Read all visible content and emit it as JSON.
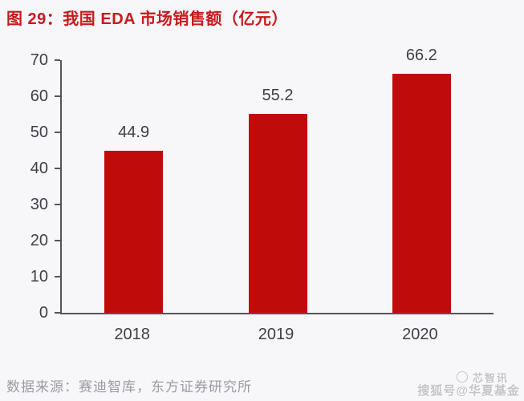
{
  "title": "图 29：我国 EDA 市场销售额（亿元）",
  "source": "数据来源：赛迪智库，东方证券研究所",
  "watermark": {
    "brand": "芯智讯",
    "account": "搜狐号@华夏基金",
    "logo_icon": "xinzhixun-swirl-circle-icon"
  },
  "colors": {
    "bar": "#C00B0B",
    "title_text": "#C9191C",
    "axis_line": "#54545C",
    "tick_text": "#3F3F48",
    "source_text": "#9B9BA6",
    "background": "#F7F7F9"
  },
  "chart_data": {
    "type": "bar",
    "title": "我国 EDA 市场销售额（亿元）",
    "categories": [
      "2018",
      "2019",
      "2020"
    ],
    "values": [
      44.9,
      55.2,
      66.2
    ],
    "data_labels": [
      "44.9",
      "55.2",
      "66.2"
    ],
    "xlabel": "",
    "ylabel": "",
    "ylim": [
      0,
      70
    ],
    "yticks": [
      0,
      10,
      20,
      30,
      40,
      50,
      60,
      70
    ],
    "grid": false,
    "legend": "none",
    "bar_color": "#C00B0B"
  }
}
